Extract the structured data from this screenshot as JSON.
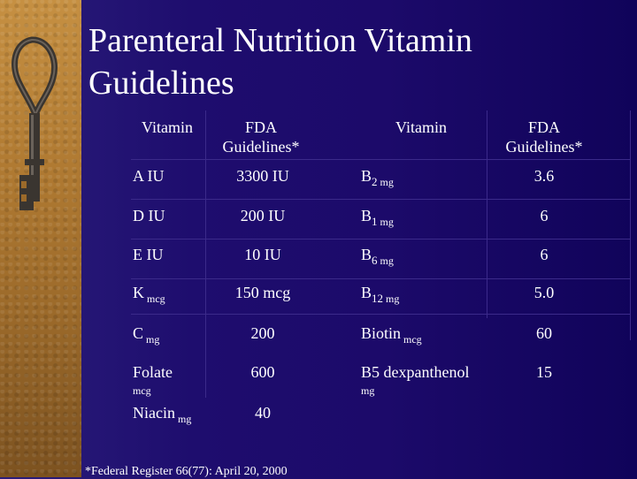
{
  "title": "Parenteral Nutrition Vitamin Guidelines",
  "headers": {
    "vitamin": "Vitamin",
    "fda": "FDA Guidelines*"
  },
  "left_rows": [
    {
      "name": "A IU",
      "unit": "",
      "value": "3300 IU"
    },
    {
      "name": "D IU",
      "unit": "",
      "value": "200 IU"
    },
    {
      "name": "E IU",
      "unit": "",
      "value": "10 IU"
    },
    {
      "name": "K",
      "unit": "mcg",
      "value": "150 mcg"
    },
    {
      "name": "C",
      "unit": "mg",
      "value": "200"
    },
    {
      "name": "Folate",
      "unit": "mcg",
      "value": "600"
    },
    {
      "name": "Niacin",
      "unit": "mg",
      "value": "40"
    }
  ],
  "right_rows": [
    {
      "name": "B",
      "sub": "2",
      "unit": "mg",
      "value": "3.6"
    },
    {
      "name": "B",
      "sub": "1",
      "unit": "mg",
      "value": "6"
    },
    {
      "name": "B",
      "sub": "6",
      "unit": "mg",
      "value": "6"
    },
    {
      "name": "B",
      "sub": "12",
      "unit": "mg",
      "value": "5.0"
    },
    {
      "name": "Biotin",
      "sub": "",
      "unit": "mcg",
      "value": "60"
    },
    {
      "name": "B5 dexpanthenol",
      "sub": "",
      "unit": "mg",
      "value": "15"
    }
  ],
  "footnote": "*Federal Register 66(77): April 20, 2000",
  "colors": {
    "background": "#1c0a6a",
    "accent_strip": "#b07a32",
    "grid": "#3b2a8a"
  },
  "decorative_image": "antique-key"
}
